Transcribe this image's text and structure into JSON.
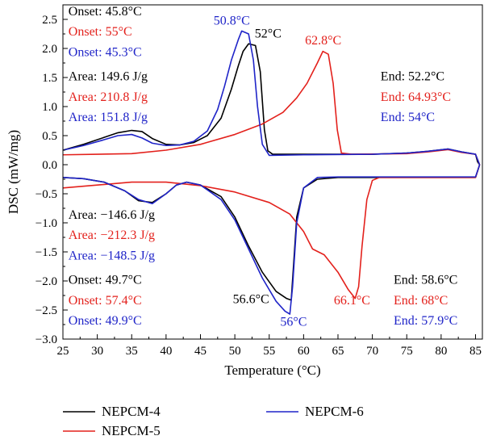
{
  "colors": {
    "NEPCM-4": "#000000",
    "NEPCM-5": "#e3211c",
    "NEPCM-6": "#1f24c8",
    "axis": "#000000"
  },
  "chart_data": {
    "type": "line",
    "title": "",
    "xlabel": "Temperature (°C)",
    "ylabel": "DSC (mW/mg)",
    "xlim": [
      25,
      86
    ],
    "ylim": [
      -3.0,
      2.75
    ],
    "xticks": [
      25,
      30,
      35,
      40,
      45,
      50,
      55,
      60,
      65,
      70,
      75,
      80,
      85
    ],
    "yticks": [
      -3.0,
      -2.5,
      -2.0,
      -1.5,
      -1.0,
      -0.5,
      0.0,
      0.5,
      1.0,
      1.5,
      2.0,
      2.5
    ],
    "ytick_labels": [
      "−3.0",
      "−2.5",
      "−2.0",
      "−1.5",
      "−1.0",
      "−0.5",
      "0.0",
      "0.5",
      "1.0",
      "1.5",
      "2.0",
      "2.5"
    ],
    "grid": false,
    "legend_position": "bottom",
    "series": [
      {
        "name": "NEPCM-4",
        "color": "#000000",
        "heating": [
          [
            25,
            0.25
          ],
          [
            28,
            0.35
          ],
          [
            31,
            0.47
          ],
          [
            33,
            0.55
          ],
          [
            35,
            0.59
          ],
          [
            36.5,
            0.57
          ],
          [
            38,
            0.45
          ],
          [
            40,
            0.35
          ],
          [
            42,
            0.34
          ],
          [
            44,
            0.38
          ],
          [
            46,
            0.5
          ],
          [
            48,
            0.8
          ],
          [
            49.5,
            1.3
          ],
          [
            50.5,
            1.7
          ],
          [
            51.2,
            1.95
          ],
          [
            52,
            2.08
          ],
          [
            53,
            2.05
          ],
          [
            53.7,
            1.6
          ],
          [
            54.3,
            0.6
          ],
          [
            54.8,
            0.24
          ],
          [
            55.5,
            0.18
          ],
          [
            60,
            0.18
          ],
          [
            70,
            0.18
          ],
          [
            75,
            0.2
          ],
          [
            78,
            0.23
          ],
          [
            81,
            0.27
          ],
          [
            83,
            0.22
          ],
          [
            85,
            0.18
          ],
          [
            85.3,
            0.05
          ],
          [
            85.6,
            0
          ]
        ],
        "cooling": [
          [
            25,
            -0.22
          ],
          [
            28,
            -0.24
          ],
          [
            31,
            -0.3
          ],
          [
            34,
            -0.45
          ],
          [
            36,
            -0.62
          ],
          [
            38,
            -0.65
          ],
          [
            40,
            -0.5
          ],
          [
            41.5,
            -0.35
          ],
          [
            43,
            -0.3
          ],
          [
            45,
            -0.35
          ],
          [
            48,
            -0.55
          ],
          [
            50,
            -0.9
          ],
          [
            52,
            -1.4
          ],
          [
            54,
            -1.85
          ],
          [
            56,
            -2.18
          ],
          [
            57.5,
            -2.3
          ],
          [
            58.2,
            -2.33
          ],
          [
            58.5,
            -1.8
          ],
          [
            59,
            -0.9
          ],
          [
            60,
            -0.4
          ],
          [
            62,
            -0.25
          ],
          [
            65,
            -0.22
          ],
          [
            80,
            -0.22
          ],
          [
            85,
            -0.22
          ],
          [
            85.6,
            0
          ]
        ]
      },
      {
        "name": "NEPCM-5",
        "color": "#e3211c",
        "heating": [
          [
            25,
            0.17
          ],
          [
            30,
            0.18
          ],
          [
            35,
            0.19
          ],
          [
            40,
            0.25
          ],
          [
            45,
            0.35
          ],
          [
            50,
            0.52
          ],
          [
            54,
            0.7
          ],
          [
            57,
            0.9
          ],
          [
            59,
            1.15
          ],
          [
            60.5,
            1.4
          ],
          [
            62,
            1.75
          ],
          [
            62.8,
            1.95
          ],
          [
            63.6,
            1.9
          ],
          [
            64.3,
            1.4
          ],
          [
            64.9,
            0.6
          ],
          [
            65.5,
            0.2
          ],
          [
            67,
            0.18
          ],
          [
            75,
            0.19
          ],
          [
            78,
            0.22
          ],
          [
            81,
            0.26
          ],
          [
            83,
            0.21
          ],
          [
            85,
            0.18
          ],
          [
            85.6,
            0
          ]
        ],
        "cooling": [
          [
            25,
            -0.4
          ],
          [
            30,
            -0.35
          ],
          [
            35,
            -0.3
          ],
          [
            40,
            -0.3
          ],
          [
            45,
            -0.36
          ],
          [
            50,
            -0.47
          ],
          [
            55,
            -0.65
          ],
          [
            58,
            -0.85
          ],
          [
            60,
            -1.15
          ],
          [
            61.3,
            -1.45
          ],
          [
            63,
            -1.55
          ],
          [
            65,
            -1.85
          ],
          [
            66.5,
            -2.15
          ],
          [
            67.5,
            -2.3
          ],
          [
            68,
            -2.1
          ],
          [
            68.5,
            -1.4
          ],
          [
            69.2,
            -0.6
          ],
          [
            70,
            -0.27
          ],
          [
            71,
            -0.22
          ],
          [
            80,
            -0.22
          ],
          [
            85,
            -0.22
          ],
          [
            85.6,
            0
          ]
        ]
      },
      {
        "name": "NEPCM-6",
        "color": "#1f24c8",
        "heating": [
          [
            25,
            0.25
          ],
          [
            28,
            0.33
          ],
          [
            31,
            0.43
          ],
          [
            33,
            0.5
          ],
          [
            35,
            0.52
          ],
          [
            36.5,
            0.46
          ],
          [
            38,
            0.37
          ],
          [
            40,
            0.33
          ],
          [
            42,
            0.34
          ],
          [
            44,
            0.4
          ],
          [
            46,
            0.58
          ],
          [
            47.5,
            0.95
          ],
          [
            48.5,
            1.35
          ],
          [
            49.5,
            1.8
          ],
          [
            50.5,
            2.15
          ],
          [
            51,
            2.3
          ],
          [
            52,
            2.25
          ],
          [
            52.7,
            1.8
          ],
          [
            53.3,
            1.0
          ],
          [
            54,
            0.35
          ],
          [
            55,
            0.16
          ],
          [
            60,
            0.17
          ],
          [
            70,
            0.18
          ],
          [
            75,
            0.2
          ],
          [
            78,
            0.23
          ],
          [
            81,
            0.27
          ],
          [
            83,
            0.22
          ],
          [
            85,
            0.18
          ],
          [
            85.6,
            0
          ]
        ],
        "cooling": [
          [
            25,
            -0.22
          ],
          [
            28,
            -0.24
          ],
          [
            31,
            -0.3
          ],
          [
            34,
            -0.45
          ],
          [
            36,
            -0.6
          ],
          [
            38,
            -0.67
          ],
          [
            40,
            -0.5
          ],
          [
            41.5,
            -0.35
          ],
          [
            43,
            -0.3
          ],
          [
            45,
            -0.35
          ],
          [
            48,
            -0.6
          ],
          [
            50,
            -0.95
          ],
          [
            52,
            -1.45
          ],
          [
            54,
            -1.95
          ],
          [
            56,
            -2.35
          ],
          [
            57.3,
            -2.52
          ],
          [
            58,
            -2.57
          ],
          [
            58.4,
            -2.1
          ],
          [
            59,
            -1.0
          ],
          [
            60,
            -0.4
          ],
          [
            62,
            -0.22
          ],
          [
            65,
            -0.21
          ],
          [
            80,
            -0.21
          ],
          [
            85,
            -0.21
          ],
          [
            85.6,
            0
          ]
        ]
      }
    ],
    "annotations": [
      {
        "text": "Onset: 45.8°C",
        "color": "#000000",
        "x": 25.8,
        "y": 2.57
      },
      {
        "text": "Onset: 55°C",
        "color": "#e3211c",
        "x": 25.8,
        "y": 2.22
      },
      {
        "text": "Onset: 45.3°C",
        "color": "#1f24c8",
        "x": 25.8,
        "y": 1.87
      },
      {
        "text": "Area: 149.6 J/g",
        "color": "#000000",
        "x": 25.8,
        "y": 1.45
      },
      {
        "text": "Area: 210.8 J/g",
        "color": "#e3211c",
        "x": 25.8,
        "y": 1.1
      },
      {
        "text": "Area: 151.8 J/g",
        "color": "#1f24c8",
        "x": 25.8,
        "y": 0.75
      },
      {
        "text": "50.8°C",
        "color": "#1f24c8",
        "x": 46.9,
        "y": 2.41
      },
      {
        "text": "52°C",
        "color": "#000000",
        "x": 52.9,
        "y": 2.19
      },
      {
        "text": "62.8°C",
        "color": "#e3211c",
        "x": 60.2,
        "y": 2.07
      },
      {
        "text": "End: 52.2°C",
        "color": "#000000",
        "x": 71.2,
        "y": 1.45
      },
      {
        "text": "End: 64.93°C",
        "color": "#e3211c",
        "x": 71.2,
        "y": 1.1
      },
      {
        "text": "End: 54°C",
        "color": "#1f24c8",
        "x": 71.2,
        "y": 0.75
      },
      {
        "text": "Area: −146.6 J/g",
        "color": "#000000",
        "x": 25.8,
        "y": -0.93
      },
      {
        "text": "Area: −212.3 J/g",
        "color": "#e3211c",
        "x": 25.8,
        "y": -1.28
      },
      {
        "text": "Area: −148.5 J/g",
        "color": "#1f24c8",
        "x": 25.8,
        "y": -1.63
      },
      {
        "text": "Onset: 49.7°C",
        "color": "#000000",
        "x": 25.8,
        "y": -2.05
      },
      {
        "text": "Onset: 57.4°C",
        "color": "#e3211c",
        "x": 25.8,
        "y": -2.4
      },
      {
        "text": "Onset: 49.9°C",
        "color": "#1f24c8",
        "x": 25.8,
        "y": -2.75
      },
      {
        "text": "56.6°C",
        "color": "#000000",
        "x": 49.7,
        "y": -2.38
      },
      {
        "text": "56°C",
        "color": "#1f24c8",
        "x": 56.6,
        "y": -2.77
      },
      {
        "text": "66.1°C",
        "color": "#e3211c",
        "x": 64.4,
        "y": -2.4
      },
      {
        "text": "End: 58.6°C",
        "color": "#000000",
        "x": 73.1,
        "y": -2.05
      },
      {
        "text": "End: 68°C",
        "color": "#e3211c",
        "x": 73.1,
        "y": -2.4
      },
      {
        "text": "End: 57.9°C",
        "color": "#1f24c8",
        "x": 73.1,
        "y": -2.75
      }
    ]
  }
}
